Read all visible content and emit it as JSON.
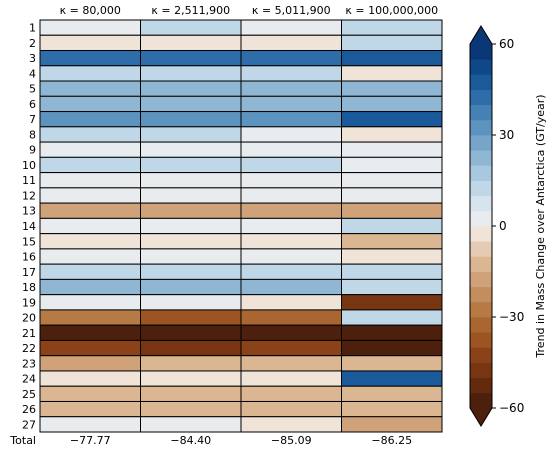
{
  "chart_data": {
    "type": "heatmap",
    "columns": [
      "κ = 80,000",
      "κ = 2,511,900",
      "κ = 5,011,900",
      "κ = 100,000,000"
    ],
    "rows": [
      "1",
      "2",
      "3",
      "4",
      "5",
      "6",
      "7",
      "8",
      "9",
      "10",
      "11",
      "12",
      "13",
      "14",
      "15",
      "16",
      "17",
      "18",
      "19",
      "20",
      "21",
      "22",
      "23",
      "24",
      "25",
      "26",
      "27"
    ],
    "total_label": "Total",
    "totals": [
      "−77.77",
      "−84.40",
      "−85.09",
      "−86.25"
    ],
    "values": [
      [
        2,
        10,
        2,
        10
      ],
      [
        -4,
        -4,
        -4,
        10
      ],
      [
        40,
        40,
        40,
        45
      ],
      [
        12,
        12,
        12,
        -4
      ],
      [
        20,
        20,
        20,
        20
      ],
      [
        20,
        20,
        20,
        20
      ],
      [
        30,
        30,
        30,
        45
      ],
      [
        12,
        12,
        2,
        -4
      ],
      [
        2,
        2,
        2,
        2
      ],
      [
        12,
        12,
        12,
        2
      ],
      [
        2,
        2,
        2,
        2
      ],
      [
        2,
        2,
        2,
        2
      ],
      [
        -20,
        -20,
        -20,
        -20
      ],
      [
        2,
        2,
        2,
        12
      ],
      [
        -4,
        -4,
        -4,
        -12
      ],
      [
        2,
        2,
        2,
        -4
      ],
      [
        12,
        12,
        12,
        12
      ],
      [
        20,
        20,
        20,
        12
      ],
      [
        2,
        2,
        -4,
        -50
      ],
      [
        -30,
        -40,
        -34,
        10
      ],
      [
        -58,
        -58,
        -58,
        -58
      ],
      [
        -44,
        -48,
        -44,
        -58
      ],
      [
        -20,
        -12,
        -12,
        -12
      ],
      [
        -4,
        -4,
        -4,
        45
      ],
      [
        -12,
        -12,
        -12,
        -12
      ],
      [
        -12,
        -12,
        -12,
        -12
      ],
      [
        2,
        2,
        -4,
        -20
      ]
    ],
    "colorbar": {
      "label": "Trend in Mass Change over Antarctica (GT/year)",
      "ticks": [
        "60",
        "30",
        "0",
        "−30",
        "−60"
      ],
      "range": [
        -60,
        60
      ],
      "extend": "both",
      "colors": [
        "#4d1f0d",
        "#632a0e",
        "#773511",
        "#8c4218",
        "#9c5422",
        "#aa6630",
        "#b67a44",
        "#c38e5e",
        "#cfa279",
        "#dab693",
        "#e5cbb4",
        "#f0e3d8",
        "#e8ecef",
        "#d5e4ef",
        "#c0d7e7",
        "#a8c8df",
        "#8fb7d4",
        "#76a5c9",
        "#5d93bf",
        "#4581b5",
        "#2e6da9",
        "#1b5a9a",
        "#0f4888",
        "#0a3775"
      ]
    }
  }
}
